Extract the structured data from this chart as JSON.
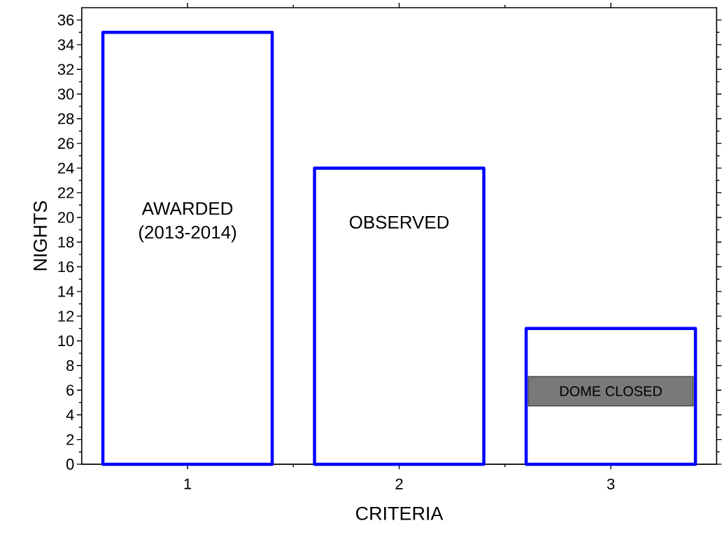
{
  "chart_data": {
    "type": "bar",
    "x": [
      1,
      2,
      3
    ],
    "values": [
      35,
      24,
      11
    ],
    "color": "#0000ff",
    "xlabel": "CRITERIA",
    "ylabel": "NIGHTS",
    "xlim": [
      0.5,
      3.5
    ],
    "ylim": [
      0,
      37
    ],
    "xticks": [
      1,
      2,
      3
    ],
    "yticks": [
      0,
      2,
      4,
      6,
      8,
      10,
      12,
      14,
      16,
      18,
      20,
      22,
      24,
      26,
      28,
      30,
      32,
      34,
      36
    ],
    "annotations": [
      "AWARDED (2013-2014)",
      "OBSERVED",
      "DOME CLOSED"
    ]
  }
}
